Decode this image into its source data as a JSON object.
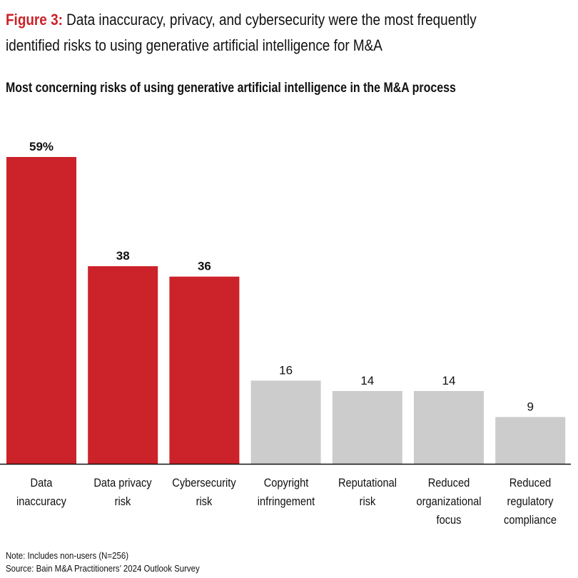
{
  "figure": {
    "label": "Figure 3:",
    "title": "Data inaccuracy, privacy, and cybersecurity were the most frequently identified risks to using generative artificial intelligence for M&A"
  },
  "chart_data": {
    "type": "bar",
    "title": "Most concerning risks of using generative artificial intelligence in the M&A process",
    "categories": [
      [
        "Data",
        "inaccuracy"
      ],
      [
        "Data privacy",
        "risk"
      ],
      [
        "Cybersecurity",
        "risk"
      ],
      [
        "Copyright",
        "infringement"
      ],
      [
        "Reputational",
        "risk"
      ],
      [
        "Reduced",
        "organizational",
        "focus"
      ],
      [
        "Reduced",
        "regulatory",
        "compliance"
      ]
    ],
    "values": [
      59,
      38,
      36,
      16,
      14,
      14,
      9
    ],
    "data_labels": [
      "59%",
      "38",
      "36",
      "16",
      "14",
      "14",
      "9"
    ],
    "highlighted": [
      true,
      true,
      true,
      false,
      false,
      false,
      false
    ],
    "colors": {
      "highlight": "#cc2229",
      "other": "#cccccc",
      "axis": "#111111"
    },
    "xlabel": "",
    "ylabel": "",
    "ylim": [
      0,
      59
    ],
    "grid": false,
    "legend": "none"
  },
  "footnotes": {
    "note": "Note: Includes non-users (N=256)",
    "source": "Source: Bain M&A Practitioners’ 2024 Outlook Survey"
  }
}
